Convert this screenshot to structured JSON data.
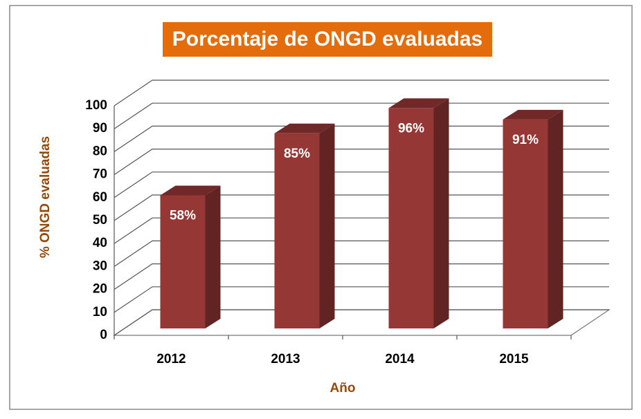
{
  "chart_data": {
    "type": "bar3d",
    "title": "Porcentaje de ONGD evaluadas",
    "y_label": "% ONGD evaluadas",
    "x_label": "Año",
    "categories": [
      "2012",
      "2013",
      "2014",
      "2015"
    ],
    "values": [
      58,
      85,
      96,
      91
    ],
    "value_labels": [
      "58%",
      "85%",
      "96%",
      "91%"
    ],
    "color": "#953735",
    "ylim": [
      0,
      100
    ],
    "yticks": [
      0,
      10,
      20,
      30,
      40,
      50,
      60,
      70,
      80,
      90,
      100
    ],
    "grid": true
  }
}
